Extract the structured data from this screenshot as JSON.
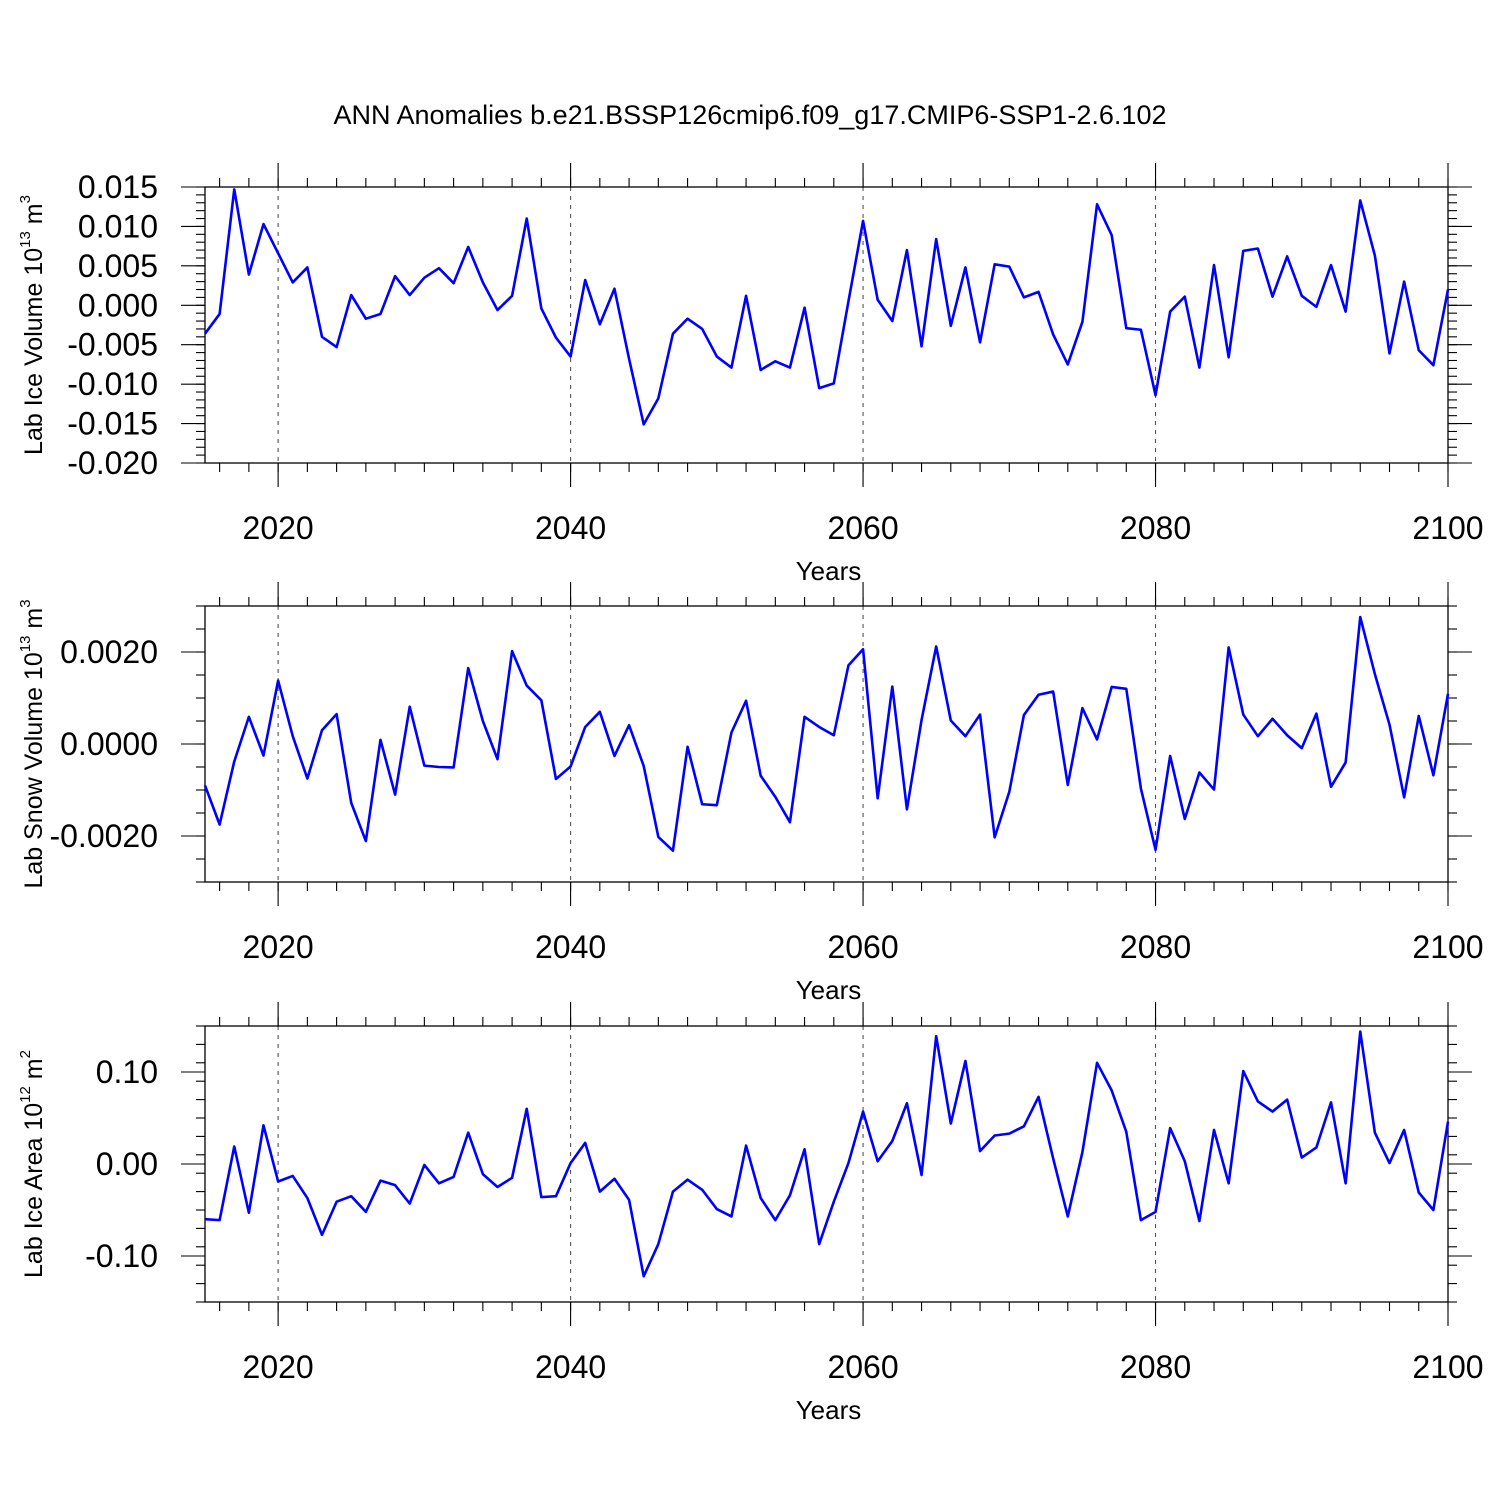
{
  "chart_data": {
    "title": "ANN Anomalies b.e21.BSSP126cmip6.f09_g17.CMIP6-SSP1-2.6.102",
    "type": "line",
    "line_color": "#0000ff",
    "grid": "vertical dashed at major x ticks",
    "xlim": [
      2015,
      2100
    ],
    "x_major_ticks": [
      2020,
      2040,
      2060,
      2080,
      2100
    ],
    "x_major_tick_labels": [
      "2020",
      "2040",
      "2060",
      "2080",
      "2100"
    ],
    "x_start_year": 2015,
    "panels": [
      {
        "xlabel": "Years",
        "ylabel_main": "Lab Ice Volume 10",
        "ylabel_exp": "13",
        "ylabel_unit": " m",
        "ylabel_unit_exp": "3",
        "ylim": [
          -0.02,
          0.015
        ],
        "y_major_ticks": [
          -0.02,
          -0.015,
          -0.01,
          -0.005,
          0,
          0.005,
          0.01,
          0.015
        ],
        "y_major_tick_labels": [
          "-0.020",
          "-0.015",
          "-0.010",
          "-0.005",
          "0.000",
          "0.005",
          "0.010",
          "0.015"
        ],
        "y_minor_step": 0.001,
        "values": [
          -0.0036,
          -0.0011,
          0.0147,
          0.0039,
          0.0103,
          0.0066,
          0.0029,
          0.0048,
          -0.004,
          -0.0053,
          0.0013,
          -0.0017,
          -0.0011,
          0.0037,
          0.0013,
          0.0035,
          0.0047,
          0.0028,
          0.0074,
          0.0029,
          -0.0006,
          0.0012,
          0.011,
          -0.0004,
          -0.0041,
          -0.0065,
          0.0032,
          -0.0024,
          0.0021,
          -0.0068,
          -0.0151,
          -0.0118,
          -0.0036,
          -0.0017,
          -0.003,
          -0.0065,
          -0.0079,
          0.0012,
          -0.0082,
          -0.0071,
          -0.0079,
          -0.0003,
          -0.0105,
          -0.0099,
          0.0005,
          0.0107,
          0.0007,
          -0.002,
          0.007,
          -0.0052,
          0.0084,
          -0.0026,
          0.0048,
          -0.0047,
          0.0052,
          0.0049,
          0.001,
          0.0017,
          -0.0037,
          -0.0075,
          -0.0021,
          0.0128,
          0.0089,
          -0.0029,
          -0.0031,
          -0.0114,
          -0.0008,
          0.0011,
          -0.0079,
          0.0051,
          -0.0066,
          0.0069,
          0.0072,
          0.0011,
          0.0062,
          0.0012,
          -0.0002,
          0.0051,
          -0.0008,
          0.0133,
          0.0063,
          -0.0061,
          0.003,
          -0.0057,
          -0.0076,
          0.002
        ]
      },
      {
        "xlabel": "Years",
        "ylabel_main": "Lab Snow Volume 10",
        "ylabel_exp": "13",
        "ylabel_unit": " m",
        "ylabel_unit_exp": "3",
        "ylim": [
          -0.003,
          0.003
        ],
        "y_major_ticks": [
          -0.002,
          0,
          0.002
        ],
        "y_major_tick_labels": [
          "-0.0020",
          "0.0000",
          "0.0020"
        ],
        "y_minor_step": 0.0005,
        "values": [
          -0.0009,
          -0.00175,
          -0.00038,
          0.00059,
          -0.00025,
          0.00138,
          0.00017,
          -0.00075,
          0.0003,
          0.00065,
          -0.00128,
          -0.00211,
          9e-05,
          -0.0011,
          0.00081,
          -0.00047,
          -0.0005,
          -0.00051,
          0.00165,
          0.0005,
          -0.00033,
          0.00202,
          0.00127,
          0.00095,
          -0.00076,
          -0.00049,
          0.00037,
          0.0007,
          -0.00026,
          0.00041,
          -0.00048,
          -0.00202,
          -0.00232,
          -6e-05,
          -0.00131,
          -0.00133,
          0.00025,
          0.00094,
          -0.00069,
          -0.00115,
          -0.0017,
          0.00059,
          0.00037,
          0.00019,
          0.00171,
          0.00206,
          -0.00118,
          0.00125,
          -0.00142,
          0.00052,
          0.00212,
          0.00051,
          0.00017,
          0.00064,
          -0.00203,
          -0.00104,
          0.00063,
          0.00107,
          0.00114,
          -0.00089,
          0.00078,
          0.0001,
          0.00124,
          0.0012,
          -0.00097,
          -0.0023,
          -0.00026,
          -0.00163,
          -0.00062,
          -0.00099,
          0.0021,
          0.00064,
          0.00017,
          0.00055,
          0.00019,
          -9e-05,
          0.00066,
          -0.00093,
          -0.0004,
          0.00276,
          0.00152,
          0.00042,
          -0.00116,
          0.00061,
          -0.00068,
          0.00109
        ]
      },
      {
        "xlabel": "Years",
        "ylabel_main": "Lab Ice Area 10",
        "ylabel_exp": "12",
        "ylabel_unit": " m",
        "ylabel_unit_exp": "2",
        "ylim": [
          -0.15,
          0.15
        ],
        "y_major_ticks": [
          -0.1,
          0,
          0.1
        ],
        "y_major_tick_labels": [
          "-0.10",
          "0.00",
          "0.10"
        ],
        "y_minor_step": 0.02,
        "values": [
          -0.06,
          -0.061,
          0.019,
          -0.053,
          0.042,
          -0.019,
          -0.013,
          -0.037,
          -0.077,
          -0.041,
          -0.035,
          -0.052,
          -0.018,
          -0.023,
          -0.043,
          -0.001,
          -0.021,
          -0.014,
          0.034,
          -0.011,
          -0.025,
          -0.015,
          0.06,
          -0.036,
          -0.035,
          0.001,
          0.023,
          -0.03,
          -0.016,
          -0.039,
          -0.122,
          -0.087,
          -0.03,
          -0.017,
          -0.028,
          -0.049,
          -0.057,
          0.02,
          -0.037,
          -0.061,
          -0.034,
          0.016,
          -0.087,
          -0.041,
          0.001,
          0.057,
          0.003,
          0.025,
          0.066,
          -0.012,
          0.139,
          0.044,
          0.112,
          0.014,
          0.031,
          0.033,
          0.041,
          0.073,
          0.006,
          -0.057,
          0.013,
          0.11,
          0.08,
          0.035,
          -0.061,
          -0.052,
          0.039,
          0.003,
          -0.062,
          0.037,
          -0.021,
          0.101,
          0.068,
          0.057,
          0.07,
          0.007,
          0.018,
          0.067,
          -0.021,
          0.144,
          0.034,
          0.001,
          0.037,
          -0.031,
          -0.05,
          0.046
        ]
      }
    ]
  }
}
